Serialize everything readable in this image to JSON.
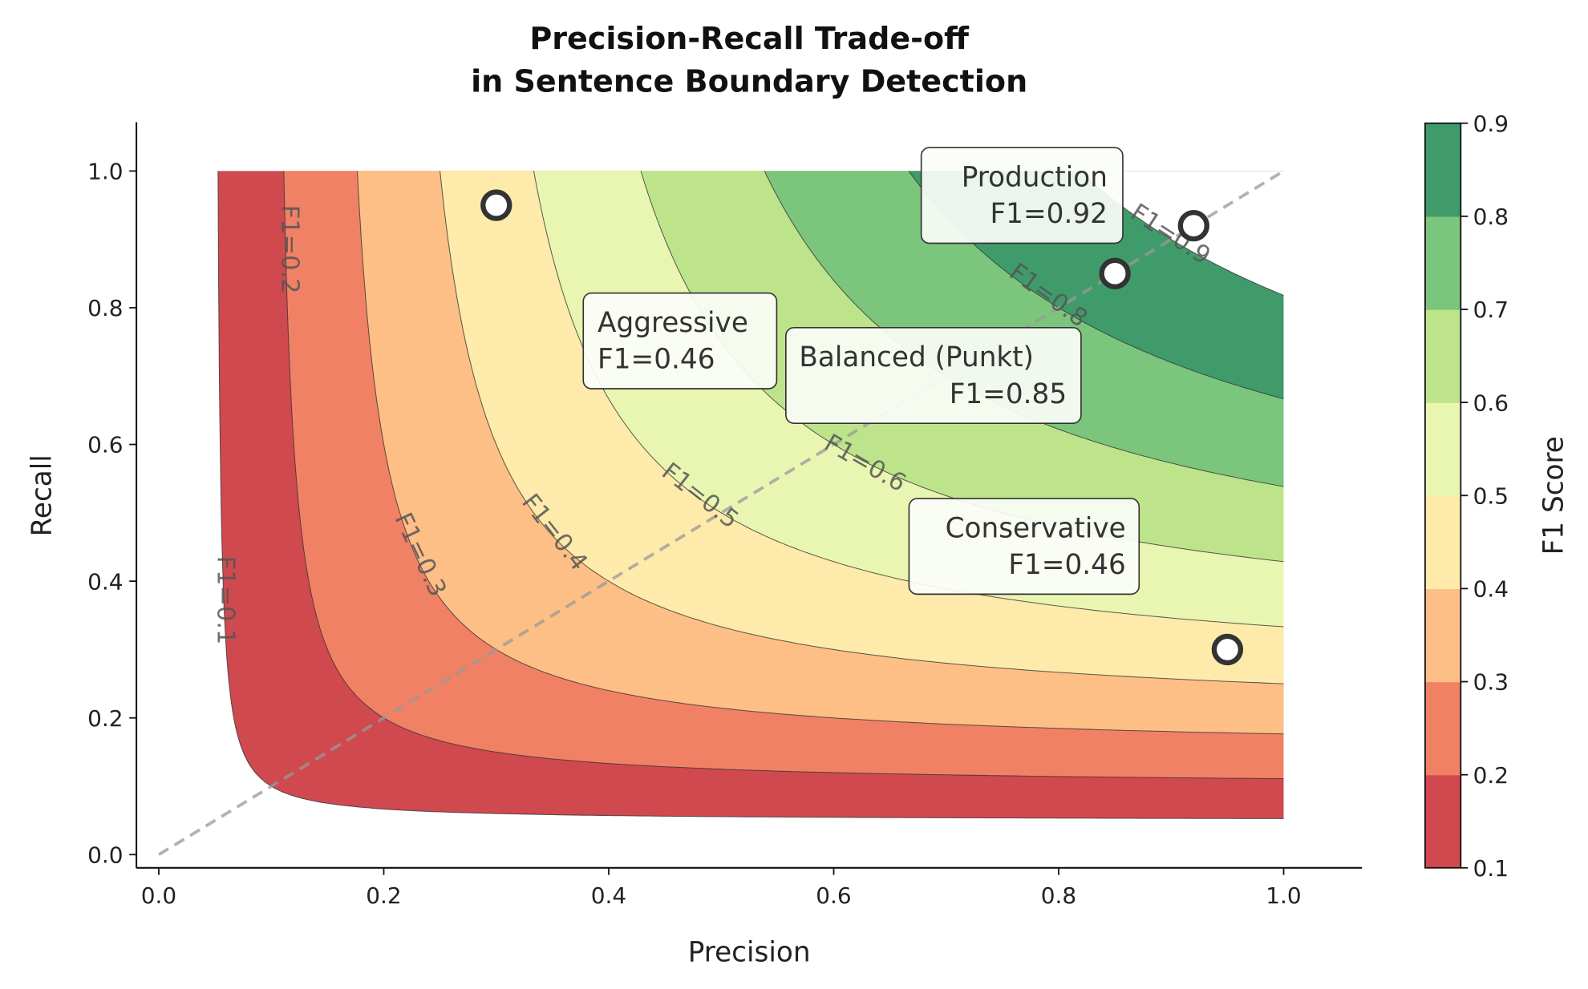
{
  "chart_data": {
    "type": "contour",
    "title": [
      "Precision-Recall Trade-off",
      "in Sentence Boundary Detection"
    ],
    "xlabel": "Precision",
    "ylabel": "Recall",
    "xlim": [
      -0.03,
      1.07
    ],
    "ylim": [
      -0.02,
      1.07
    ],
    "xticks": [
      "0.0",
      "0.2",
      "0.4",
      "0.6",
      "0.8",
      "1.0"
    ],
    "yticks": [
      "0.0",
      "0.2",
      "0.4",
      "0.6",
      "0.8",
      "1.0"
    ],
    "field": "F1 = 2PR/(P+R)",
    "grid_range": [
      0.05,
      1.0
    ],
    "levels": [
      0.1,
      0.2,
      0.3,
      0.4,
      0.5,
      0.6,
      0.7,
      0.8,
      0.9
    ],
    "level_colors": [
      "#d0494f",
      "#f08165",
      "#fdbf85",
      "#feebab",
      "#e9f6b1",
      "#bde48b",
      "#7bc57c",
      "#3f9c6a"
    ],
    "contour_labels": [
      "F1=0.1",
      "F1=0.2",
      "F1=0.3",
      "F1=0.4",
      "F1=0.5",
      "F1=0.6",
      "F1=0.8",
      "F1=0.9"
    ],
    "colorbar": {
      "label": "F1 Score",
      "ticks": [
        "0.1",
        "0.2",
        "0.3",
        "0.4",
        "0.5",
        "0.6",
        "0.7",
        "0.8",
        "0.9"
      ]
    },
    "reference_line": {
      "style": "dashed",
      "color": "#999999",
      "from": [
        0,
        0
      ],
      "to": [
        1,
        1
      ]
    },
    "points": [
      {
        "name": "Aggressive",
        "precision": 0.3,
        "recall": 0.95,
        "label": "F1=0.46"
      },
      {
        "name": "Balanced (Punkt)",
        "precision": 0.85,
        "recall": 0.85,
        "label": "F1=0.85"
      },
      {
        "name": "Production",
        "precision": 0.92,
        "recall": 0.92,
        "label": "F1=0.92"
      },
      {
        "name": "Conservative",
        "precision": 0.95,
        "recall": 0.3,
        "label": "F1=0.46"
      }
    ],
    "grid": false
  }
}
